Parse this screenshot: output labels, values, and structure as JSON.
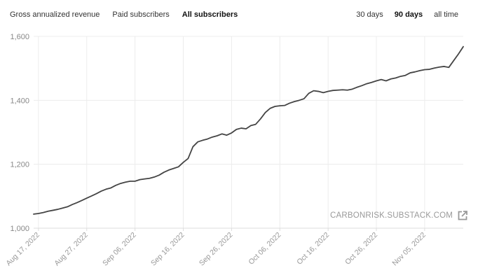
{
  "metric_tabs": [
    {
      "label": "Gross annualized revenue",
      "active": false
    },
    {
      "label": "Paid subscribers",
      "active": false
    },
    {
      "label": "All subscribers",
      "active": true
    }
  ],
  "range_tabs": [
    {
      "label": "30 days",
      "active": false
    },
    {
      "label": "90 days",
      "active": true
    },
    {
      "label": "all time",
      "active": false
    }
  ],
  "watermark": {
    "text": "CARBONRISK.SUBSTACK.COM",
    "icon": "external-link-icon"
  },
  "colors": {
    "line": "#444444",
    "grid": "#ececec",
    "axis": "#dddddd"
  },
  "chart_data": {
    "type": "line",
    "title": "",
    "xlabel": "",
    "ylabel": "",
    "ylim": [
      1000,
      1600
    ],
    "y_ticks": [
      1000,
      1200,
      1400,
      1600
    ],
    "y_tick_labels": [
      "1,000",
      "1,200",
      "1,400",
      "1,600"
    ],
    "x_ticks": [
      "2022-08-17",
      "2022-08-27",
      "2022-09-06",
      "2022-09-16",
      "2022-09-26",
      "2022-10-06",
      "2022-10-16",
      "2022-10-26",
      "2022-11-05"
    ],
    "x_tick_labels": [
      "Aug 17, 2022",
      "Aug 27, 2022",
      "Sep 06, 2022",
      "Sep 16, 2022",
      "Sep 26, 2022",
      "Oct 06, 2022",
      "Oct 16, 2022",
      "Oct 26, 2022",
      "Nov 05, 2022"
    ],
    "grid": true,
    "legend": "none",
    "series": [
      {
        "x": [
          "2022-08-16",
          "2022-08-17",
          "2022-08-18",
          "2022-08-19",
          "2022-08-20",
          "2022-08-21",
          "2022-08-22",
          "2022-08-23",
          "2022-08-24",
          "2022-08-25",
          "2022-08-26",
          "2022-08-27",
          "2022-08-28",
          "2022-08-29",
          "2022-08-30",
          "2022-08-31",
          "2022-09-01",
          "2022-09-02",
          "2022-09-03",
          "2022-09-04",
          "2022-09-05",
          "2022-09-06",
          "2022-09-07",
          "2022-09-08",
          "2022-09-09",
          "2022-09-10",
          "2022-09-11",
          "2022-09-12",
          "2022-09-13",
          "2022-09-14",
          "2022-09-15",
          "2022-09-16",
          "2022-09-17",
          "2022-09-18",
          "2022-09-19",
          "2022-09-20",
          "2022-09-21",
          "2022-09-22",
          "2022-09-23",
          "2022-09-24",
          "2022-09-25",
          "2022-09-26",
          "2022-09-27",
          "2022-09-28",
          "2022-09-29",
          "2022-09-30",
          "2022-10-01",
          "2022-10-02",
          "2022-10-03",
          "2022-10-04",
          "2022-10-05",
          "2022-10-06",
          "2022-10-07",
          "2022-10-08",
          "2022-10-09",
          "2022-10-10",
          "2022-10-11",
          "2022-10-12",
          "2022-10-13",
          "2022-10-14",
          "2022-10-15",
          "2022-10-16",
          "2022-10-17",
          "2022-10-18",
          "2022-10-19",
          "2022-10-20",
          "2022-10-21",
          "2022-10-22",
          "2022-10-23",
          "2022-10-24",
          "2022-10-25",
          "2022-10-26",
          "2022-10-27",
          "2022-10-28",
          "2022-10-29",
          "2022-10-30",
          "2022-10-31",
          "2022-11-01",
          "2022-11-02",
          "2022-11-03",
          "2022-11-04",
          "2022-11-05",
          "2022-11-06",
          "2022-11-07",
          "2022-11-08",
          "2022-11-09",
          "2022-11-10",
          "2022-11-11",
          "2022-11-12",
          "2022-11-13"
        ],
        "y": [
          1044,
          1046,
          1049,
          1053,
          1056,
          1059,
          1063,
          1067,
          1074,
          1080,
          1087,
          1094,
          1101,
          1108,
          1116,
          1122,
          1126,
          1134,
          1140,
          1144,
          1147,
          1147,
          1152,
          1154,
          1156,
          1160,
          1166,
          1175,
          1182,
          1187,
          1192,
          1206,
          1218,
          1255,
          1270,
          1275,
          1279,
          1285,
          1289,
          1295,
          1291,
          1298,
          1309,
          1313,
          1311,
          1321,
          1325,
          1342,
          1362,
          1375,
          1381,
          1383,
          1384,
          1391,
          1396,
          1400,
          1405,
          1422,
          1430,
          1428,
          1424,
          1428,
          1431,
          1432,
          1433,
          1432,
          1435,
          1441,
          1446,
          1452,
          1456,
          1461,
          1465,
          1461,
          1467,
          1470,
          1475,
          1478,
          1486,
          1489,
          1493,
          1496,
          1497,
          1501,
          1504,
          1506,
          1503,
          1524,
          1545,
          1568
        ]
      }
    ]
  }
}
